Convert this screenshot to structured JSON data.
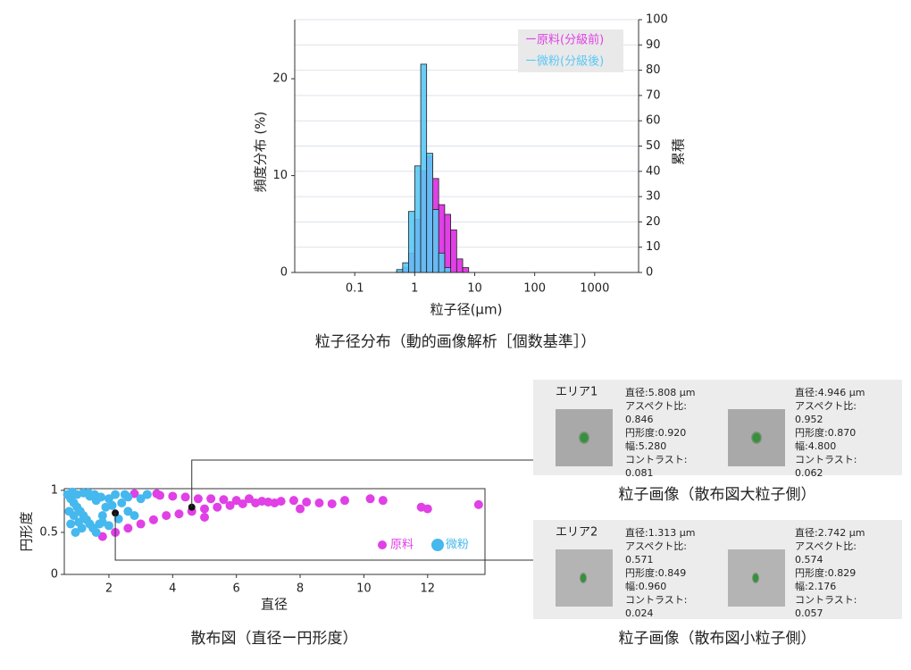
{
  "chart_data": [
    {
      "type": "histogram",
      "title": "粒子径分布（動的画像解析［個数基準］）",
      "xlabel": "粒子径(µm)",
      "ylabel": "頻度分布 (%)",
      "y2label": "累積",
      "log_x": true,
      "xlim": [
        0.01,
        5400
      ],
      "xticks": [
        0.1,
        1,
        10,
        100,
        1000
      ],
      "ylim": [
        0,
        26.1
      ],
      "yticks": [
        0,
        10,
        20
      ],
      "y2lim": [
        0,
        100
      ],
      "y2ticks": [
        0,
        10,
        20,
        30,
        40,
        50,
        60,
        70,
        80,
        90,
        100
      ],
      "grid": true,
      "legend": "top-right",
      "bins": [
        0.5,
        0.63,
        0.79,
        1,
        1.26,
        1.58,
        2,
        2.51,
        3.16,
        3.98,
        5.01,
        6.31,
        7.94
      ],
      "series": [
        {
          "name": "ー原料(分級前)",
          "color": "#e040e6",
          "values": [
            0.1,
            0.5,
            2,
            5.5,
            10.5,
            12,
            9.7,
            7,
            6,
            4.4,
            1.4,
            0.5
          ]
        },
        {
          "name": "ー微粉(分級後)",
          "color": "#5ac8f5",
          "values": [
            0.3,
            1,
            6.3,
            11,
            21.5,
            12.3,
            6.5,
            2,
            0.5,
            0,
            0,
            0
          ]
        }
      ]
    },
    {
      "type": "scatter",
      "title": "散布図（直径ー円形度）",
      "xlabel": "直径",
      "ylabel": "円形度",
      "xlim": [
        0.6,
        13.8
      ],
      "xticks": [
        2,
        4,
        6,
        8,
        10,
        12
      ],
      "ylim": [
        0,
        1.02
      ],
      "yticks": [
        0,
        0.5,
        1
      ],
      "legend": "bottom-right",
      "series": [
        {
          "name": "原料",
          "color": "#e040e6",
          "x": [
            1.8,
            2.2,
            2.6,
            3.0,
            3.4,
            3.8,
            4.2,
            4.6,
            5.0,
            5.4,
            5.8,
            6.2,
            6.6,
            7.0,
            7.4,
            7.8,
            8.2,
            8.6,
            9.0,
            9.4,
            3.2,
            3.6,
            4.0,
            4.4,
            4.8,
            5.2,
            5.6,
            6.0,
            6.4,
            6.8,
            7.2,
            10.2,
            10.6,
            11.8,
            12.0,
            13.6,
            8.0,
            5.0,
            2.8,
            3.5
          ],
          "values": [
            0.45,
            0.5,
            0.55,
            0.6,
            0.65,
            0.7,
            0.72,
            0.75,
            0.78,
            0.8,
            0.82,
            0.84,
            0.85,
            0.86,
            0.87,
            0.88,
            0.86,
            0.85,
            0.84,
            0.88,
            0.95,
            0.94,
            0.93,
            0.92,
            0.9,
            0.9,
            0.89,
            0.88,
            0.9,
            0.87,
            0.85,
            0.9,
            0.88,
            0.8,
            0.78,
            0.83,
            0.78,
            0.68,
            0.96,
            0.96
          ]
        },
        {
          "name": "微粉",
          "color": "#45b8ee",
          "x": [
            0.7,
            0.8,
            0.9,
            1.0,
            1.1,
            1.2,
            1.3,
            1.4,
            1.5,
            1.6,
            1.7,
            1.8,
            1.9,
            2.0,
            2.2,
            2.4,
            2.6,
            2.8,
            3.0,
            0.8,
            0.9,
            1.0,
            1.2,
            1.4,
            1.6,
            1.8,
            2.0,
            2.3,
            2.6,
            3.2,
            0.75,
            0.95,
            1.15,
            1.35,
            1.55,
            1.75,
            2.1,
            2.5,
            0.85,
            1.05
          ],
          "values": [
            0.95,
            0.9,
            0.85,
            0.8,
            0.75,
            0.7,
            0.65,
            0.6,
            0.55,
            0.5,
            0.6,
            0.7,
            0.8,
            0.9,
            0.95,
            0.85,
            0.75,
            0.7,
            0.9,
            0.6,
            0.7,
            0.95,
            0.97,
            0.93,
            0.88,
            0.62,
            0.58,
            0.66,
            0.92,
            0.95,
            0.75,
            0.5,
            0.55,
            0.97,
            0.95,
            0.92,
            0.82,
            0.95,
            0.98,
            0.62
          ]
        }
      ],
      "highlights": [
        {
          "x": 4.6,
          "y": 0.8
        },
        {
          "x": 2.2,
          "y": 0.73
        }
      ]
    }
  ],
  "image_panels": [
    {
      "label": "エリア1",
      "caption": "粒子画像（散布図大粒子側）",
      "particles": [
        {
          "lines": [
            "直径:5.808 µm",
            "アスペクト比:",
            "0.846",
            "円形度:0.920",
            "幅:5.280",
            "コントラスト:",
            "0.081"
          ]
        },
        {
          "lines": [
            "直径:4.946 µm",
            "アスペクト比:",
            "0.952",
            "円形度:0.870",
            "幅:4.800",
            "コントラスト:",
            "0.062"
          ]
        }
      ]
    },
    {
      "label": "エリア2",
      "caption": "粒子画像（散布図小粒子側）",
      "particles": [
        {
          "lines": [
            "直径:1.313 µm",
            "アスペクト比:",
            "0.571",
            "円形度:0.849",
            "幅:0.960",
            "コントラスト:",
            "0.024"
          ]
        },
        {
          "lines": [
            "直径:2.742 µm",
            "アスペクト比:",
            "0.574",
            "円形度:0.829",
            "幅:2.176",
            "コントラスト:",
            "0.057"
          ]
        }
      ]
    }
  ]
}
